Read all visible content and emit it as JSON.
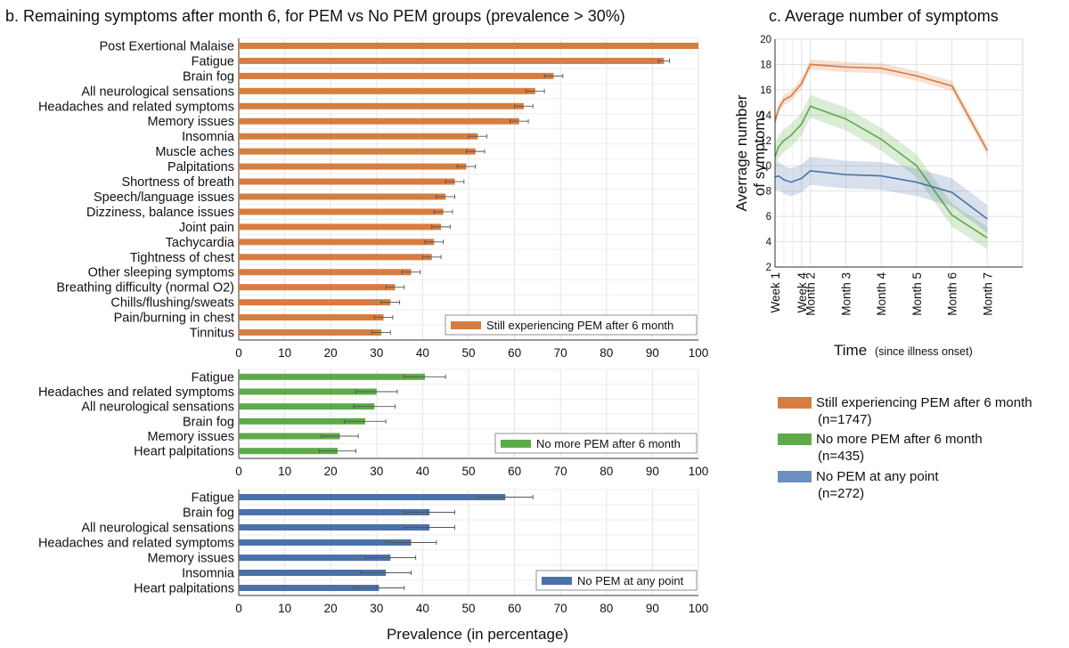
{
  "title_b": "b. Remaining symptoms after month 6, for PEM vs No PEM groups (prevalence > 30%)",
  "title_c": "c. Average number of symptoms",
  "xlabel_b": "Prevalence (in percentage)",
  "colors": {
    "orange": "#D77D3F",
    "green": "#5DAA48",
    "blue": "#4A72A8",
    "blue_legend": "#6B8FBF",
    "grid": "#e3e3e3"
  },
  "legend_c": [
    {
      "label": "Still experiencing PEM after 6 month",
      "n": "(n=1747)",
      "color": "#D77D3F"
    },
    {
      "label": "No more PEM after 6 month",
      "n": "(n=435)",
      "color": "#5DAA48"
    },
    {
      "label": "No PEM at any point",
      "n": "(n=272)",
      "color": "#6B8FBF"
    }
  ],
  "chart_data": [
    {
      "type": "bar",
      "orientation": "horizontal",
      "legend": "Still experiencing PEM after 6 month",
      "legend_position": "bottom-right",
      "color": "#D77D3F",
      "xlim": [
        0,
        100
      ],
      "xticks": [
        0,
        10,
        20,
        30,
        40,
        50,
        60,
        70,
        80,
        90,
        100
      ],
      "grid": true,
      "categories": [
        "Post Exertional Malaise",
        "Fatigue",
        "Brain fog",
        "All neurological sensations",
        "Headaches and related symptoms",
        "Memory issues",
        "Insomnia",
        "Muscle aches",
        "Palpitations",
        "Shortness of breath",
        "Speech/language issues",
        "Dizziness, balance issues",
        "Joint pain",
        "Tachycardia",
        "Tightness of chest",
        "Other sleeping symptoms",
        "Breathing difficulty (normal O2)",
        "Chills/flushing/sweats",
        "Pain/burning in chest",
        "Tinnitus"
      ],
      "values": [
        100,
        92.5,
        68.5,
        64.5,
        62,
        61,
        52,
        51.5,
        49.5,
        47,
        45,
        44.5,
        44,
        42.5,
        42,
        37.5,
        34,
        33,
        31.5,
        31
      ],
      "error": [
        0,
        1.2,
        2,
        2,
        2,
        2,
        2,
        2,
        2,
        2,
        2,
        2,
        2,
        2,
        2,
        2,
        2,
        2,
        2,
        2
      ]
    },
    {
      "type": "bar",
      "orientation": "horizontal",
      "legend": "No more PEM after 6 month",
      "legend_position": "bottom-right",
      "color": "#5DAA48",
      "xlim": [
        0,
        100
      ],
      "xticks": [
        0,
        10,
        20,
        30,
        40,
        50,
        60,
        70,
        80,
        90,
        100
      ],
      "grid": true,
      "categories": [
        "Fatigue",
        "Headaches and related symptoms",
        "All neurological sensations",
        "Brain fog",
        "Memory issues",
        "Heart palpitations"
      ],
      "values": [
        40.5,
        30,
        29.5,
        27.5,
        22,
        21.5
      ],
      "error": [
        4.5,
        4.5,
        4.5,
        4.5,
        4,
        4
      ]
    },
    {
      "type": "bar",
      "orientation": "horizontal",
      "legend": "No PEM at any point",
      "legend_position": "bottom-right",
      "color": "#4A72A8",
      "xlim": [
        0,
        100
      ],
      "xticks": [
        0,
        10,
        20,
        30,
        40,
        50,
        60,
        70,
        80,
        90,
        100
      ],
      "grid": true,
      "categories": [
        "Fatigue",
        "Brain fog",
        "All neurological sensations",
        "Headaches and related symptoms",
        "Memory issues",
        "Insomnia",
        "Heart palpitations"
      ],
      "values": [
        58,
        41.5,
        41.5,
        37.5,
        33,
        32,
        30.5
      ],
      "error": [
        6,
        5.5,
        5.5,
        5.5,
        5.5,
        5.5,
        5.5
      ]
    },
    {
      "type": "line",
      "title": "c. Average number of symptoms",
      "ylabel": "Averrage number of symptoms",
      "xlabel": "Time",
      "xlabel_note": "(since illness onset)",
      "ylim": [
        2,
        20
      ],
      "yticks": [
        2,
        4,
        6,
        8,
        10,
        12,
        14,
        16,
        18,
        20
      ],
      "xlim": [
        0,
        7
      ],
      "xticks": [
        {
          "value": 0,
          "label": "Week 1"
        },
        {
          "value": 0.75,
          "label": "Week 4"
        },
        {
          "value": 1,
          "label": "Month 2"
        },
        {
          "value": 2,
          "label": "Month 3"
        },
        {
          "value": 3,
          "label": "Month 4"
        },
        {
          "value": 4,
          "label": "Month 5"
        },
        {
          "value": 5,
          "label": "Month 6"
        },
        {
          "value": 6,
          "label": "Month 7"
        }
      ],
      "grid": true,
      "x": [
        0,
        0.1,
        0.25,
        0.45,
        0.75,
        1,
        2,
        3,
        4,
        5,
        6
      ],
      "series": [
        {
          "name": "Still experiencing PEM after 6 month",
          "color": "#D77D3F",
          "values": [
            13.5,
            14.5,
            15.2,
            15.5,
            16.5,
            18,
            17.8,
            17.7,
            17.1,
            16.3,
            11.2
          ],
          "band": 0.4
        },
        {
          "name": "No more PEM after 6 month",
          "color": "#5DAA48",
          "values": [
            10.7,
            11.5,
            12,
            12.4,
            13.3,
            14.7,
            13.7,
            12.1,
            10,
            6.1,
            4.3
          ],
          "band": 0.9
        },
        {
          "name": "No PEM at any point",
          "color": "#4A72A8",
          "values": [
            9.1,
            9.2,
            8.9,
            8.7,
            9,
            9.6,
            9.3,
            9.2,
            8.7,
            7.9,
            5.8
          ],
          "band": 1.1
        }
      ]
    }
  ]
}
